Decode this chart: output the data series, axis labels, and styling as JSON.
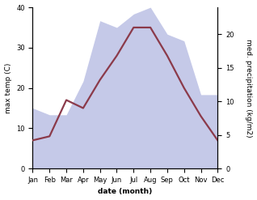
{
  "months": [
    "Jan",
    "Feb",
    "Mar",
    "Apr",
    "May",
    "Jun",
    "Jul",
    "Aug",
    "Sep",
    "Oct",
    "Nov",
    "Dec"
  ],
  "max_temp": [
    7.0,
    8.0,
    17.0,
    15.0,
    22.0,
    28.0,
    35.0,
    35.0,
    28.0,
    20.0,
    13.0,
    7.0
  ],
  "precipitation": [
    9.0,
    8.0,
    8.0,
    13.0,
    22.0,
    21.0,
    23.0,
    24.0,
    20.0,
    19.0,
    11.0,
    11.0
  ],
  "temp_color": "#8b3a4a",
  "precip_fill_color": "#c5c9e8",
  "precip_edge_color": "#c5c9e8",
  "ylim_temp": [
    0,
    40
  ],
  "ylim_precip": [
    0,
    24
  ],
  "ylabel_left": "max temp (C)",
  "ylabel_right": "med. precipitation (kg/m2)",
  "xlabel": "date (month)",
  "bg_color": "#ffffff",
  "line_width": 1.6,
  "yticks_left": [
    0,
    10,
    20,
    30,
    40
  ],
  "yticks_right": [
    0,
    5,
    10,
    15,
    20
  ],
  "title_fontsize": 7,
  "label_fontsize": 6.5,
  "tick_fontsize": 6
}
